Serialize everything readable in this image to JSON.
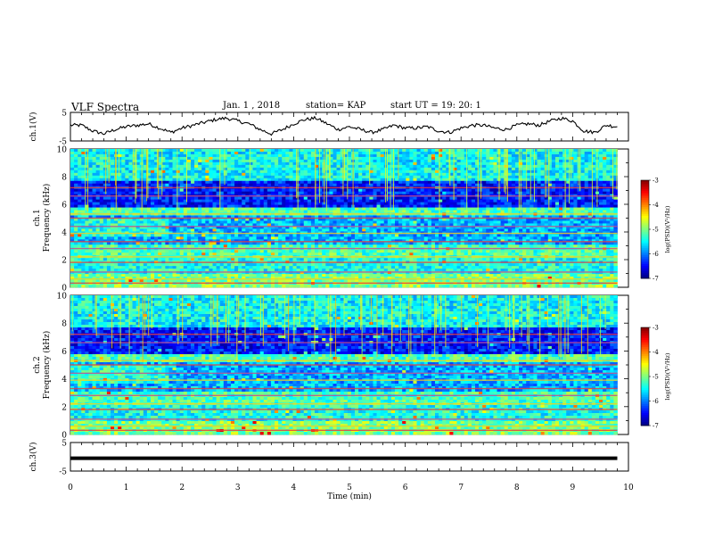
{
  "header": {
    "title": "VLF Spectra",
    "date": "Jan. 1 , 2018",
    "station": "station= KAP",
    "start": "start UT =  19: 20: 1"
  },
  "chart_data": [
    {
      "type": "line",
      "ylabel": "ch.1(V)",
      "ylim": [
        -5,
        5
      ],
      "ytick_labels": [
        "5",
        "-5"
      ],
      "xlim": [
        0,
        10
      ],
      "series": [
        {
          "x": [
            0,
            0.2,
            0.4,
            0.6,
            0.8,
            1.0,
            1.2,
            1.4,
            1.6,
            1.8,
            2.0,
            2.2,
            2.4,
            2.6,
            2.8,
            3.0,
            3.2,
            3.4,
            3.6,
            3.8,
            4.0,
            4.2,
            4.4,
            4.6,
            4.8,
            5.0,
            5.2,
            5.4,
            5.6,
            5.8,
            6.0,
            6.2,
            6.4,
            6.6,
            6.8,
            7.0,
            7.2,
            7.4,
            7.6,
            7.8,
            8.0,
            8.2,
            8.4,
            8.6,
            8.8,
            9.0,
            9.2,
            9.4,
            9.6,
            9.8
          ],
          "values": [
            0.5,
            0.5,
            -1.5,
            -2.5,
            -1,
            0,
            0.5,
            1,
            -0.5,
            -2,
            -0.5,
            0.5,
            1.5,
            2.5,
            3,
            2,
            1,
            -1,
            -2.5,
            -1,
            1,
            2.5,
            3,
            1,
            -1,
            0,
            -1,
            -2,
            -1,
            0.5,
            -0.5,
            -0.5,
            0,
            -1.5,
            -2,
            -0.5,
            0.5,
            0.5,
            -0.5,
            -1,
            0.5,
            1,
            0.5,
            2,
            3,
            2,
            -1.5,
            -2,
            0.5,
            0
          ]
        }
      ]
    },
    {
      "type": "heatmap",
      "ylabel": "ch.1 Frequency (kHz)",
      "ylim": [
        0,
        10
      ],
      "ytick_labels": [
        "10",
        "8",
        "6",
        "4",
        "2",
        "0"
      ],
      "xlim": [
        0,
        10
      ],
      "colorbar": {
        "label": "log(PSD)(V²/Hz)",
        "range": [
          -7,
          -3
        ],
        "tick_labels": [
          "-3",
          "-4",
          "-5",
          "-6",
          "-7"
        ]
      }
    },
    {
      "type": "heatmap",
      "ylabel": "ch.2 Frequency (kHz)",
      "ylim": [
        0,
        10
      ],
      "ytick_labels": [
        "10",
        "8",
        "6",
        "4",
        "2",
        "0"
      ],
      "xlim": [
        0,
        10
      ],
      "colorbar": {
        "label": "log(PSD)(V²/Hz)",
        "range": [
          -7,
          -3
        ],
        "tick_labels": [
          "-3",
          "-4",
          "-5",
          "-6",
          "-7"
        ]
      }
    },
    {
      "type": "line",
      "ylabel": "ch.3(V)",
      "ylim": [
        -5,
        5
      ],
      "ytick_labels": [
        "5",
        "-5"
      ],
      "xlim": [
        0,
        10
      ],
      "xlabel": "Time (min)",
      "xtick_labels": [
        "0",
        "1",
        "2",
        "3",
        "4",
        "5",
        "6",
        "7",
        "8",
        "9",
        "10"
      ],
      "series": [
        {
          "x": [
            0,
            9.8
          ],
          "values": [
            -0.5,
            -0.5
          ]
        }
      ]
    }
  ]
}
